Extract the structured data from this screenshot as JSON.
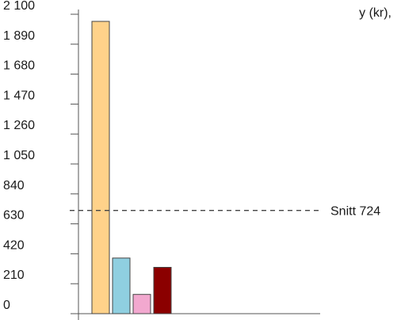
{
  "chart_data": {
    "type": "bar",
    "title_fragment": "y (kr),",
    "ylim": [
      0,
      2100
    ],
    "ytick_values": [
      0,
      210,
      420,
      630,
      840,
      1050,
      1260,
      1470,
      1680,
      1890,
      2100
    ],
    "ytick_labels": [
      "0",
      "210",
      "420",
      "630",
      "840",
      "1 050",
      "1 260",
      "1 470",
      "1 680",
      "1 890",
      "2 100"
    ],
    "bars": [
      {
        "value": 2050,
        "color": "#FFD28A"
      },
      {
        "value": 390,
        "color": "#8FCFE0"
      },
      {
        "value": 135,
        "color": "#F2A8CF"
      },
      {
        "value": 325,
        "color": "#8B0000"
      }
    ],
    "average": {
      "value": 724,
      "label": "Snitt 724"
    },
    "grid": false,
    "colors": {
      "axis": "#555555",
      "bar_outline": "#444444",
      "average_line": "#444444",
      "text": "#1a1a1a"
    }
  }
}
